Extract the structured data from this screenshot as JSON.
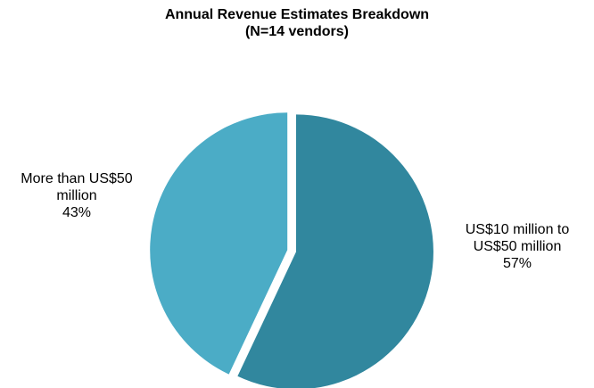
{
  "chart_data": {
    "type": "pie",
    "title": "Annual Revenue Estimates Breakdown",
    "subtitle": "(N=14 vendors)",
    "categories": [
      "US$10 million to US$50 million",
      "More than US$50 million"
    ],
    "values": [
      57,
      43
    ],
    "value_labels": [
      "57%",
      "43%"
    ],
    "colors": [
      "#31879e",
      "#4bacc6"
    ]
  }
}
